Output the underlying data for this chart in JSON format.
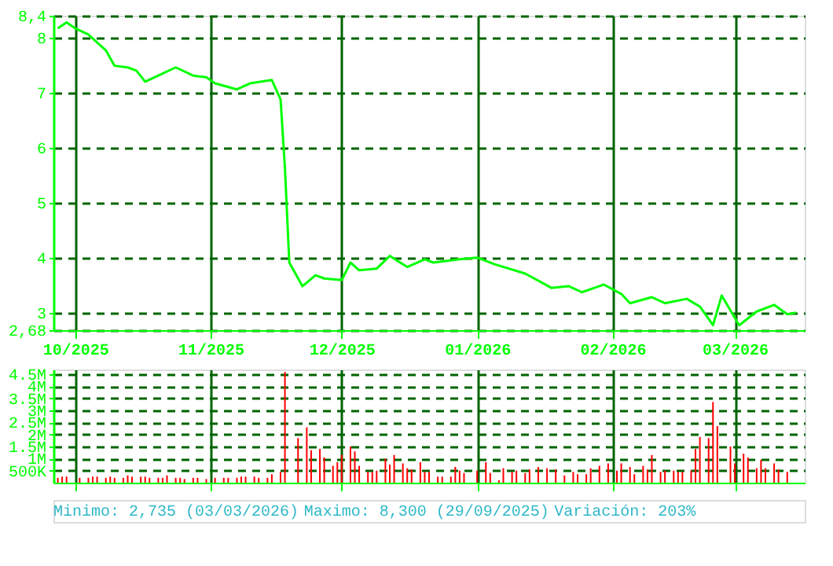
{
  "chart_data": [
    {
      "type": "line",
      "xlim": [
        "2025-09-26",
        "2026-03-17"
      ],
      "xticks": [
        {
          "value": "2025-10-01",
          "label": "10/2025"
        },
        {
          "value": "2025-11-01",
          "label": "11/2025"
        },
        {
          "value": "2025-12-01",
          "label": "12/2025"
        },
        {
          "value": "2026-01-01",
          "label": "01/2026"
        },
        {
          "value": "2026-02-01",
          "label": "02/2026"
        },
        {
          "value": "2026-03-01",
          "label": "03/2026"
        }
      ],
      "x": [
        "2025-09-27",
        "2025-09-29",
        "2025-10-01",
        "2025-10-04",
        "2025-10-08",
        "2025-10-10",
        "2025-10-13",
        "2025-10-15",
        "2025-10-17",
        "2025-10-20",
        "2025-10-24",
        "2025-10-28",
        "2025-10-31",
        "2025-11-02",
        "2025-11-07",
        "2025-11-10",
        "2025-11-15",
        "2025-11-17",
        "2025-11-18",
        "2025-11-19",
        "2025-11-22",
        "2025-11-25",
        "2025-11-27",
        "2025-12-01",
        "2025-12-03",
        "2025-12-05",
        "2025-12-09",
        "2025-12-12",
        "2025-12-16",
        "2025-12-20",
        "2025-12-22",
        "2025-12-28",
        "2026-01-01",
        "2026-01-05",
        "2026-01-12",
        "2026-01-18",
        "2026-01-22",
        "2026-01-25",
        "2026-01-30",
        "2026-02-03",
        "2026-02-05",
        "2026-02-10",
        "2026-02-13",
        "2026-02-18",
        "2026-02-21",
        "2026-02-24",
        "2026-02-26",
        "2026-03-02",
        "2026-03-06",
        "2026-03-10",
        "2026-03-13",
        "2026-03-15"
      ],
      "series": [
        {
          "color": "#00ff00",
          "values": [
            8.17,
            8.28,
            8.17,
            8.06,
            7.77,
            7.49,
            7.46,
            7.4,
            7.2,
            7.31,
            7.46,
            7.31,
            7.28,
            7.17,
            7.06,
            7.17,
            7.23,
            6.88,
            5.63,
            3.91,
            3.48,
            3.68,
            3.62,
            3.59,
            3.91,
            3.77,
            3.8,
            4.03,
            3.83,
            3.97,
            3.91,
            3.97,
            4.0,
            3.88,
            3.71,
            3.45,
            3.48,
            3.37,
            3.51,
            3.34,
            3.17,
            3.28,
            3.17,
            3.25,
            3.11,
            2.77,
            3.31,
            2.77,
            3.02,
            3.14,
            2.97,
            3.0
          ]
        }
      ],
      "ylim": [
        2.68,
        8.4
      ],
      "yticks": [
        {
          "value": 2.68,
          "label": "2,68"
        },
        3,
        4,
        5,
        6,
        7,
        8,
        {
          "value": 8.4,
          "label": "8,4"
        }
      ],
      "grid": true,
      "line_style": "solid",
      "marker": "none"
    },
    {
      "type": "bar",
      "xlim": [
        "2025-09-26",
        "2026-03-17"
      ],
      "tick_labels": "y",
      "xticks": [
        {
          "value": "2025-10-01",
          "label": null
        },
        {
          "value": "2025-11-01",
          "label": null
        },
        {
          "value": "2025-12-01",
          "label": null
        },
        {
          "value": "2026-01-01",
          "label": null
        },
        {
          "value": "2026-02-01",
          "label": null
        },
        {
          "value": "2026-03-01",
          "label": null
        }
      ],
      "x": [
        "2025-09-27",
        "2025-09-28",
        "2025-09-29",
        "2025-10-02",
        "2025-10-04",
        "2025-10-05",
        "2025-10-06",
        "2025-10-08",
        "2025-10-09",
        "2025-10-10",
        "2025-10-12",
        "2025-10-13",
        "2025-10-14",
        "2025-10-16",
        "2025-10-17",
        "2025-10-18",
        "2025-10-20",
        "2025-10-21",
        "2025-10-22",
        "2025-10-24",
        "2025-10-25",
        "2025-10-26",
        "2025-10-28",
        "2025-10-29",
        "2025-10-30",
        "2025-10-31",
        "2025-11-02",
        "2025-11-04",
        "2025-11-05",
        "2025-11-07",
        "2025-11-08",
        "2025-11-09",
        "2025-11-11",
        "2025-11-12",
        "2025-11-14",
        "2025-11-15",
        "2025-11-17",
        "2025-11-18",
        "2025-11-20",
        "2025-11-21",
        "2025-11-23",
        "2025-11-24",
        "2025-11-26",
        "2025-11-27",
        "2025-11-29",
        "2025-11-30",
        "2025-12-01",
        "2025-12-03",
        "2025-12-04",
        "2025-12-05",
        "2025-12-07",
        "2025-12-08",
        "2025-12-09",
        "2025-12-11",
        "2025-12-12",
        "2025-12-13",
        "2025-12-15",
        "2025-12-16",
        "2025-12-17",
        "2025-12-19",
        "2025-12-20",
        "2025-12-21",
        "2025-12-23",
        "2025-12-24",
        "2025-12-26",
        "2025-12-27",
        "2025-12-28",
        "2025-12-29",
        "2026-01-01",
        "2026-01-03",
        "2026-01-04",
        "2026-01-06",
        "2026-01-07",
        "2026-01-09",
        "2026-01-10",
        "2026-01-12",
        "2026-01-13",
        "2026-01-15",
        "2026-01-17",
        "2026-01-18",
        "2026-01-19",
        "2026-01-21",
        "2026-01-23",
        "2026-01-24",
        "2026-01-26",
        "2026-01-27",
        "2026-01-29",
        "2026-01-31",
        "2026-02-02",
        "2026-02-03",
        "2026-02-05",
        "2026-02-06",
        "2026-02-08",
        "2026-02-09",
        "2026-02-10",
        "2026-02-12",
        "2026-02-13",
        "2026-02-15",
        "2026-02-16",
        "2026-02-17",
        "2026-02-19",
        "2026-02-20",
        "2026-02-21",
        "2026-02-23",
        "2026-02-24",
        "2026-02-25",
        "2026-02-28",
        "2026-03-01",
        "2026-03-03",
        "2026-03-04",
        "2026-03-06",
        "2026-03-07",
        "2026-03-08",
        "2026-03-10",
        "2026-03-11",
        "2026-03-13"
      ],
      "values": [
        200000,
        250000,
        250000,
        200000,
        200000,
        250000,
        250000,
        200000,
        250000,
        200000,
        200000,
        300000,
        250000,
        250000,
        250000,
        200000,
        200000,
        200000,
        300000,
        200000,
        200000,
        150000,
        200000,
        200000,
        null,
        150000,
        200000,
        200000,
        200000,
        200000,
        250000,
        250000,
        250000,
        200000,
        200000,
        350000,
        450000,
        4600000,
        null,
        1850000,
        2300000,
        1350000,
        1400000,
        1050000,
        700000,
        850000,
        1150000,
        1500000,
        1300000,
        700000,
        450000,
        450000,
        500000,
        1000000,
        750000,
        1150000,
        800000,
        600000,
        550000,
        850000,
        450000,
        450000,
        250000,
        250000,
        250000,
        650000,
        500000,
        400000,
        500000,
        850000,
        400000,
        100000,
        600000,
        450000,
        500000,
        400000,
        550000,
        650000,
        600000,
        null,
        550000,
        300000,
        450000,
        350000,
        350000,
        600000,
        700000,
        800000,
        500000,
        800000,
        650000,
        350000,
        700000,
        550000,
        1150000,
        450000,
        500000,
        500000,
        450000,
        450000,
        500000,
        1400000,
        1900000,
        1850000,
        3350000,
        2350000,
        1500000,
        800000,
        1200000,
        1050000,
        600000,
        950000,
        600000,
        800000,
        550000,
        450000
      ],
      "color": "#ff0000",
      "ylim": [
        0,
        4700000
      ],
      "yticks": [
        {
          "value": 500000,
          "label": "500K"
        },
        {
          "value": 1000000,
          "label": "1M"
        },
        {
          "value": 1500000,
          "label": "1.5M"
        },
        {
          "value": 2000000,
          "label": "2M"
        },
        {
          "value": 2500000,
          "label": "2.5M"
        },
        {
          "value": 3000000,
          "label": "3M"
        },
        {
          "value": 3500000,
          "label": "3.5M"
        },
        {
          "value": 4000000,
          "label": "4M"
        },
        {
          "value": 4500000,
          "label": "4.5M"
        }
      ],
      "grid": true,
      "annotations": [
        "Minimo: 2,735 (03/03/2026)",
        "Maximo: 8,300 (29/09/2025)",
        "Variación: 203%"
      ]
    }
  ]
}
